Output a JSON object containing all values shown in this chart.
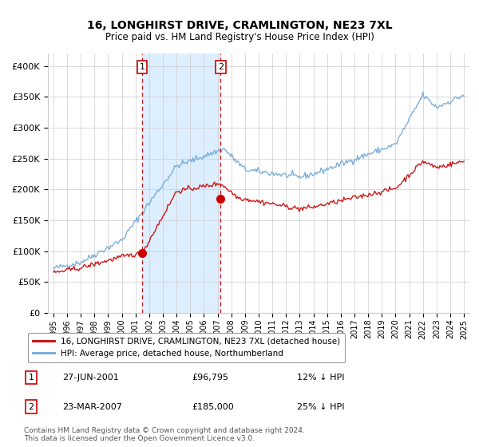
{
  "title": "16, LONGHIRST DRIVE, CRAMLINGTON, NE23 7XL",
  "subtitle": "Price paid vs. HM Land Registry's House Price Index (HPI)",
  "legend_line1": "16, LONGHIRST DRIVE, CRAMLINGTON, NE23 7XL (detached house)",
  "legend_line2": "HPI: Average price, detached house, Northumberland",
  "footer1": "Contains HM Land Registry data © Crown copyright and database right 2024.",
  "footer2": "This data is licensed under the Open Government Licence v3.0.",
  "transaction1_label": "1",
  "transaction1_date": "27-JUN-2001",
  "transaction1_price": "£96,795",
  "transaction1_hpi": "12% ↓ HPI",
  "transaction2_label": "2",
  "transaction2_date": "23-MAR-2007",
  "transaction2_price": "£185,000",
  "transaction2_hpi": "25% ↓ HPI",
  "red_line_color": "#cc0000",
  "blue_line_color": "#6fa8d4",
  "shade_color": "#ddeeff",
  "ylim_min": 0,
  "ylim_max": 420000,
  "yticks": [
    0,
    50000,
    100000,
    150000,
    200000,
    250000,
    300000,
    350000,
    400000
  ],
  "ytick_labels": [
    "£0",
    "£50K",
    "£100K",
    "£150K",
    "£200K",
    "£250K",
    "£300K",
    "£350K",
    "£400K"
  ],
  "transaction1_x": 2001.49,
  "transaction1_y": 96795,
  "transaction2_x": 2007.22,
  "transaction2_y": 185000,
  "xlim_min": 1994.6,
  "xlim_max": 2025.4
}
